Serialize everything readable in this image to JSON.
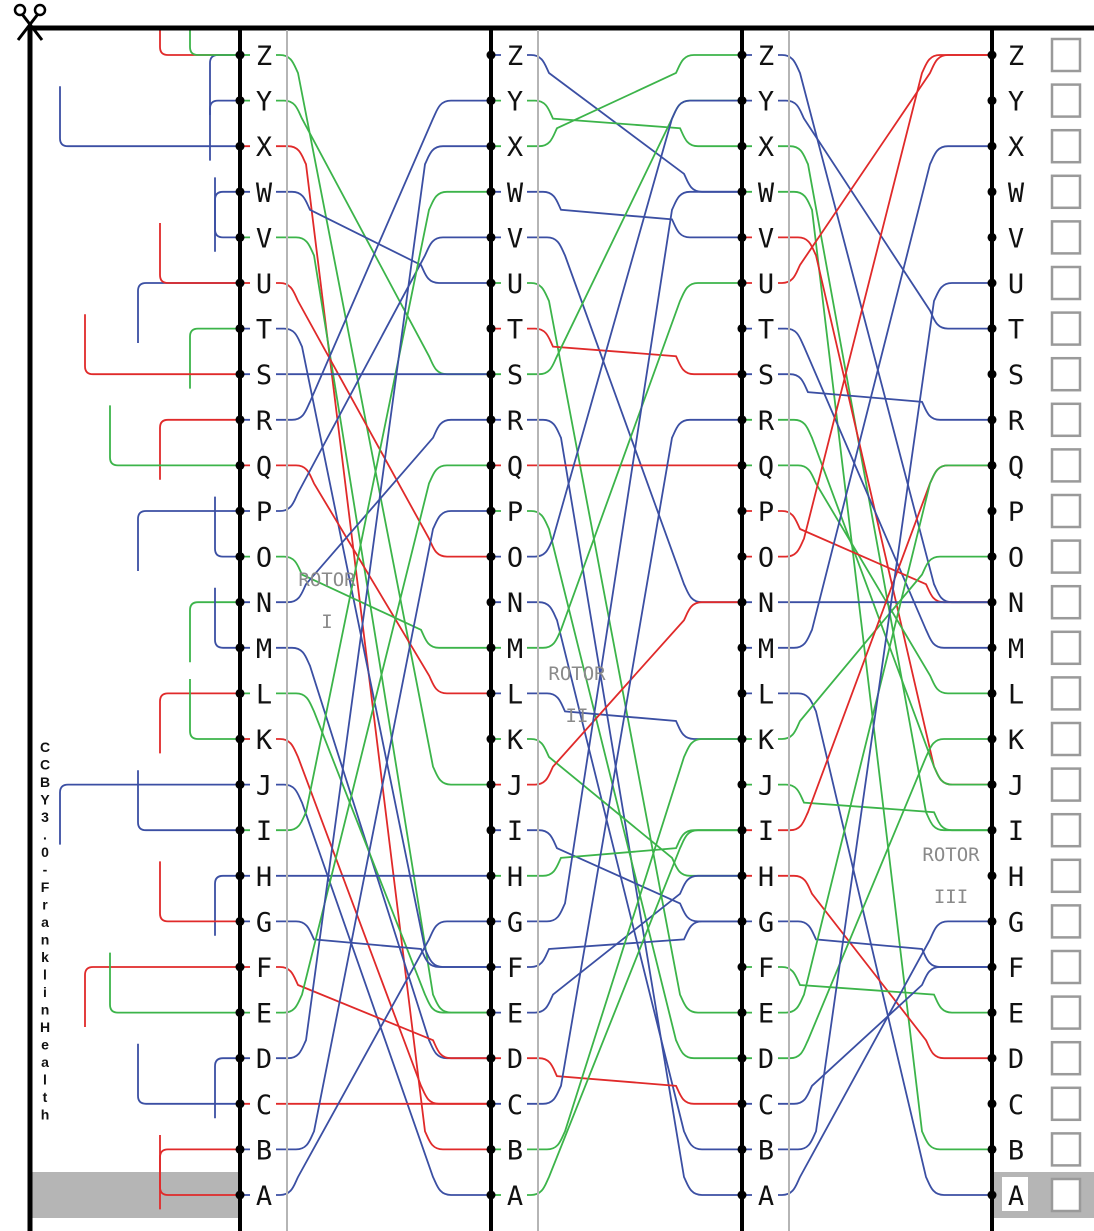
{
  "letters": [
    "Z",
    "Y",
    "X",
    "W",
    "V",
    "U",
    "T",
    "S",
    "R",
    "Q",
    "P",
    "O",
    "N",
    "M",
    "L",
    "K",
    "J",
    "I",
    "H",
    "G",
    "F",
    "E",
    "D",
    "C",
    "B",
    "A"
  ],
  "rotors": [
    {
      "name": "ROTOR",
      "numeral": "I"
    },
    {
      "name": "ROTOR",
      "numeral": "II"
    },
    {
      "name": "ROTOR",
      "numeral": "III"
    }
  ],
  "credit": "CCBY3.0-FranklinHealth",
  "icons": {
    "scissors": "scissors-icon"
  },
  "colors": {
    "red": "#e02a2a",
    "green": "#3cb44a",
    "blue": "#3b4fa3",
    "highlight": "#b5b5b5",
    "frame": "#000000"
  },
  "wiring": {
    "rotor_I": [
      [
        "Z",
        "J",
        "green"
      ],
      [
        "Y",
        "S",
        "green"
      ],
      [
        "X",
        "B",
        "red"
      ],
      [
        "W",
        "U",
        "blue"
      ],
      [
        "V",
        "E",
        "green"
      ],
      [
        "U",
        "O",
        "red"
      ],
      [
        "T",
        "F",
        "blue"
      ],
      [
        "S",
        "S",
        "blue"
      ],
      [
        "R",
        "Y",
        "blue"
      ],
      [
        "Q",
        "L",
        "red"
      ],
      [
        "P",
        "V",
        "blue"
      ],
      [
        "O",
        "M",
        "green"
      ],
      [
        "N",
        "R",
        "blue"
      ],
      [
        "M",
        "D",
        "blue"
      ],
      [
        "L",
        "E",
        "green"
      ],
      [
        "K",
        "C",
        "red"
      ],
      [
        "J",
        "A",
        "blue"
      ],
      [
        "I",
        "W",
        "green"
      ],
      [
        "H",
        "H",
        "blue"
      ],
      [
        "G",
        "F",
        "blue"
      ],
      [
        "F",
        "D",
        "red"
      ],
      [
        "E",
        "Q",
        "green"
      ],
      [
        "D",
        "X",
        "blue"
      ],
      [
        "C",
        "C",
        "red"
      ],
      [
        "B",
        "P",
        "blue"
      ],
      [
        "A",
        "G",
        "blue"
      ]
    ],
    "rotor_II": [
      [
        "Z",
        "W",
        "blue"
      ],
      [
        "Y",
        "X",
        "green"
      ],
      [
        "X",
        "Z",
        "green"
      ],
      [
        "W",
        "V",
        "blue"
      ],
      [
        "V",
        "N",
        "blue"
      ],
      [
        "U",
        "E",
        "green"
      ],
      [
        "T",
        "S",
        "red"
      ],
      [
        "S",
        "Y",
        "green"
      ],
      [
        "R",
        "A",
        "blue"
      ],
      [
        "Q",
        "Q",
        "red"
      ],
      [
        "P",
        "D",
        "green"
      ],
      [
        "O",
        "Y",
        "blue"
      ],
      [
        "N",
        "B",
        "blue"
      ],
      [
        "M",
        "U",
        "green"
      ],
      [
        "L",
        "K",
        "blue"
      ],
      [
        "K",
        "H",
        "green"
      ],
      [
        "J",
        "N",
        "red"
      ],
      [
        "I",
        "G",
        "blue"
      ],
      [
        "H",
        "I",
        "green"
      ],
      [
        "G",
        "W",
        "blue"
      ],
      [
        "F",
        "G",
        "blue"
      ],
      [
        "E",
        "H",
        "blue"
      ],
      [
        "D",
        "C",
        "red"
      ],
      [
        "C",
        "R",
        "blue"
      ],
      [
        "B",
        "K",
        "green"
      ],
      [
        "A",
        "I",
        "green"
      ]
    ],
    "rotor_III": [
      [
        "Z",
        "N",
        "blue"
      ],
      [
        "Y",
        "T",
        "blue"
      ],
      [
        "X",
        "I",
        "green"
      ],
      [
        "W",
        "B",
        "green"
      ],
      [
        "V",
        "J",
        "red"
      ],
      [
        "U",
        "Z",
        "red"
      ],
      [
        "T",
        "M",
        "blue"
      ],
      [
        "S",
        "R",
        "blue"
      ],
      [
        "R",
        "J",
        "green"
      ],
      [
        "Q",
        "L",
        "green"
      ],
      [
        "P",
        "N",
        "red"
      ],
      [
        "O",
        "Z",
        "red"
      ],
      [
        "N",
        "N",
        "blue"
      ],
      [
        "M",
        "X",
        "blue"
      ],
      [
        "L",
        "A",
        "blue"
      ],
      [
        "K",
        "O",
        "green"
      ],
      [
        "J",
        "I",
        "green"
      ],
      [
        "I",
        "Q",
        "red"
      ],
      [
        "H",
        "D",
        "red"
      ],
      [
        "G",
        "F",
        "blue"
      ],
      [
        "F",
        "E",
        "green"
      ],
      [
        "E",
        "Q",
        "green"
      ],
      [
        "D",
        "K",
        "green"
      ],
      [
        "C",
        "F",
        "blue"
      ],
      [
        "B",
        "U",
        "blue"
      ],
      [
        "A",
        "G",
        "blue"
      ]
    ],
    "stubs": [
      [
        "Z",
        "red",
        160
      ],
      [
        "Z",
        "blue",
        210
      ],
      [
        "Z",
        "green",
        190
      ],
      [
        "Y",
        "blue",
        210
      ],
      [
        "X",
        "blue",
        60
      ],
      [
        "W",
        "blue",
        215
      ],
      [
        "V",
        "blue",
        215
      ],
      [
        "U",
        "blue",
        138
      ],
      [
        "U",
        "red",
        160
      ],
      [
        "T",
        "green",
        190
      ],
      [
        "S",
        "red",
        85
      ],
      [
        "R",
        "red",
        160
      ],
      [
        "Q",
        "green",
        110
      ],
      [
        "P",
        "blue",
        138
      ],
      [
        "O",
        "blue",
        215
      ],
      [
        "N",
        "green",
        190
      ],
      [
        "M",
        "blue",
        215
      ],
      [
        "L",
        "red",
        160
      ],
      [
        "K",
        "green",
        190
      ],
      [
        "J",
        "blue",
        60
      ],
      [
        "I",
        "blue",
        138
      ],
      [
        "H",
        "blue",
        215
      ],
      [
        "G",
        "red",
        160
      ],
      [
        "F",
        "red",
        85
      ],
      [
        "E",
        "green",
        110
      ],
      [
        "D",
        "blue",
        215
      ],
      [
        "C",
        "blue",
        138
      ],
      [
        "B",
        "red",
        160
      ],
      [
        "A",
        "red",
        160
      ]
    ]
  }
}
